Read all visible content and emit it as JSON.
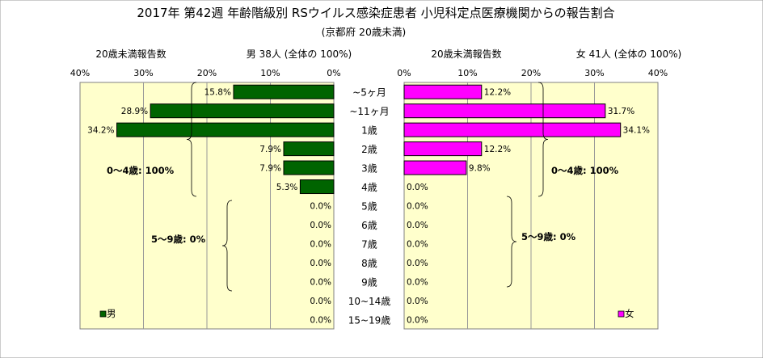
{
  "title": "2017年 第42週 年齢階級別 RSウイルス感染症患者 小児科定点医療機関からの報告割合",
  "subtitle": "(京都府 20歳未満)",
  "chart_data": [
    {
      "type": "bar",
      "orientation": "horizontal-reversed",
      "axis_title": "20歳未満報告数",
      "header": "男  38人  (全体の  100%)",
      "xlim": [
        0,
        40
      ],
      "xticks": [
        "40%",
        "30%",
        "20%",
        "10%",
        "0%"
      ],
      "xtick_values": [
        40,
        30,
        20,
        10,
        0
      ],
      "legend": "男",
      "legend_position": "bottom-left",
      "color": "#006400",
      "categories": [
        "~5ヶ月",
        "~11ヶ月",
        "1歳",
        "2歳",
        "3歳",
        "4歳",
        "5歳",
        "6歳",
        "7歳",
        "8歳",
        "9歳",
        "10~14歳",
        "15~19歳"
      ],
      "values": [
        15.8,
        28.9,
        34.2,
        7.9,
        7.9,
        5.3,
        0,
        0,
        0,
        0,
        0,
        0,
        0
      ],
      "labels": [
        "15.8%",
        "28.9%",
        "34.2%",
        "7.9%",
        "7.9%",
        "5.3%",
        "0.0%",
        "0.0%",
        "0.0%",
        "0.0%",
        "0.0%",
        "0.0%",
        "0.0%"
      ],
      "annotations": [
        "0～4歳: 100%",
        "5～9歳: 0%"
      ]
    },
    {
      "type": "bar",
      "orientation": "horizontal",
      "axis_title": "20歳未満報告数",
      "header": "女  41人  (全体の  100%)",
      "xlim": [
        0,
        40
      ],
      "xticks": [
        "0%",
        "10%",
        "20%",
        "30%",
        "40%"
      ],
      "xtick_values": [
        0,
        10,
        20,
        30,
        40
      ],
      "legend": "女",
      "legend_position": "bottom-right",
      "color": "#ff00ff",
      "categories": [
        "~5ヶ月",
        "~11ヶ月",
        "1歳",
        "2歳",
        "3歳",
        "4歳",
        "5歳",
        "6歳",
        "7歳",
        "8歳",
        "9歳",
        "10~14歳",
        "15~19歳"
      ],
      "values": [
        12.2,
        31.7,
        34.1,
        12.2,
        9.8,
        0,
        0,
        0,
        0,
        0,
        0,
        0,
        0
      ],
      "labels": [
        "12.2%",
        "31.7%",
        "34.1%",
        "12.2%",
        "9.8%",
        "0.0%",
        "0.0%",
        "0.0%",
        "0.0%",
        "0.0%",
        "0.0%",
        "0.0%",
        "0.0%"
      ],
      "annotations": [
        "0～4歳: 100%",
        "5～9歳: 0%"
      ]
    }
  ],
  "category_labels": [
    "~5ヶ月",
    "~11ヶ月",
    "1歳",
    "2歳",
    "3歳",
    "4歳",
    "5歳",
    "6歳",
    "7歳",
    "8歳",
    "9歳",
    "10~14歳",
    "15~19歳"
  ],
  "colors": {
    "male": "#006400",
    "female": "#ff00ff",
    "plot_bg": "#ffffcc",
    "grid": "#999999"
  }
}
